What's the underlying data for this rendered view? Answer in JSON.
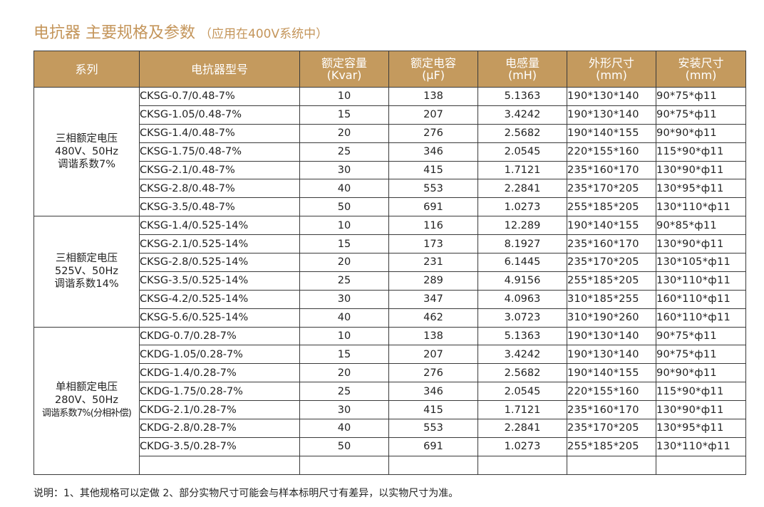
{
  "title": "电抗器 主要规格及参数",
  "subtitle": "（应用在400V系统中）",
  "headers": {
    "series": "系列",
    "model": "电抗器型号",
    "capacity": [
      "额定容量",
      "(Kvar)"
    ],
    "capacitance": [
      "额定电容",
      "(μF)"
    ],
    "inductance": [
      "电感量",
      "(mH)"
    ],
    "dimensions": [
      "外形尺寸",
      "(mm)"
    ],
    "mounting": [
      "安装尺寸",
      "(mm)"
    ]
  },
  "groups": [
    {
      "series_lines": [
        "三相额定电压",
        "480V、50Hz",
        "调谐系数7%"
      ],
      "rows": [
        [
          "CKSG-0.7/0.48-7%",
          "10",
          "138",
          "5.1363",
          "190*130*140",
          "90*75*ф11"
        ],
        [
          "CKSG-1.05/0.48-7%",
          "15",
          "207",
          "3.4242",
          "190*130*140",
          "90*75*ф11"
        ],
        [
          "CKSG-1.4/0.48-7%",
          "20",
          "276",
          "2.5682",
          "190*140*155",
          "90*90*ф11"
        ],
        [
          "CKSG-1.75/0.48-7%",
          "25",
          "346",
          "2.0545",
          "220*155*160",
          "115*90*ф11"
        ],
        [
          "CKSG-2.1/0.48-7%",
          "30",
          "415",
          "1.7121",
          "235*160*170",
          "130*90*ф11"
        ],
        [
          "CKSG-2.8/0.48-7%",
          "40",
          "553",
          "2.2841",
          "235*170*205",
          "130*95*ф11"
        ],
        [
          "CKSG-3.5/0.48-7%",
          "50",
          "691",
          "1.0273",
          "255*185*205",
          "130*110*ф11"
        ]
      ]
    },
    {
      "series_lines": [
        "三相额定电压",
        "525V、50Hz",
        "调谐系数14%"
      ],
      "rows": [
        [
          "CKSG-1.4/0.525-14%",
          "10",
          "116",
          "12.289",
          "190*140*155",
          "90*85*ф11"
        ],
        [
          "CKSG-2.1/0.525-14%",
          "15",
          "173",
          "8.1927",
          "235*160*170",
          "130*90*ф11"
        ],
        [
          "CKSG-2.8/0.525-14%",
          "20",
          "231",
          "6.1445",
          "235*170*205",
          "130*105*ф11"
        ],
        [
          "CKSG-3.5/0.525-14%",
          "25",
          "289",
          "4.9156",
          "255*185*205",
          "130*110*ф11"
        ],
        [
          "CKSG-4.2/0.525-14%",
          "30",
          "347",
          "4.0963",
          "310*185*255",
          "160*110*ф11"
        ],
        [
          "CKSG-5.6/0.525-14%",
          "40",
          "462",
          "3.0723",
          "310*190*260",
          "160*110*ф11"
        ]
      ]
    },
    {
      "series_lines": [
        "单相额定电压",
        "280V、50Hz",
        "调谐系数7%(分相补偿)"
      ],
      "rows": [
        [
          "CKDG-0.7/0.28-7%",
          "10",
          "138",
          "5.1363",
          "190*130*140",
          "90*75*ф11"
        ],
        [
          "CKDG-1.05/0.28-7%",
          "15",
          "207",
          "3.4242",
          "190*130*140",
          "90*75*ф11"
        ],
        [
          "CKDG-1.4/0.28-7%",
          "20",
          "276",
          "2.5682",
          "190*140*155",
          "90*90*ф11"
        ],
        [
          "CKDG-1.75/0.28-7%",
          "25",
          "346",
          "2.0545",
          "220*155*160",
          "115*90*ф11"
        ],
        [
          "CKDG-2.1/0.28-7%",
          "30",
          "415",
          "1.7121",
          "235*160*170",
          "130*90*ф11"
        ],
        [
          "CKDG-2.8/0.28-7%",
          "40",
          "553",
          "2.2841",
          "235*170*205",
          "130*95*ф11"
        ],
        [
          "CKDG-3.5/0.28-7%",
          "50",
          "691",
          "1.0273",
          "255*185*205",
          "130*110*ф11"
        ],
        [
          "",
          "",
          "",
          "",
          "",
          ""
        ]
      ]
    }
  ],
  "note": "说明：1、其他规格可以定做  2、部分实物尺寸可能会与样本标明尺寸有差异，以实物尺寸为准。",
  "colors": {
    "header_bg": "#c49a5e",
    "title": "#c4955a",
    "border": "#3a3a3a"
  }
}
